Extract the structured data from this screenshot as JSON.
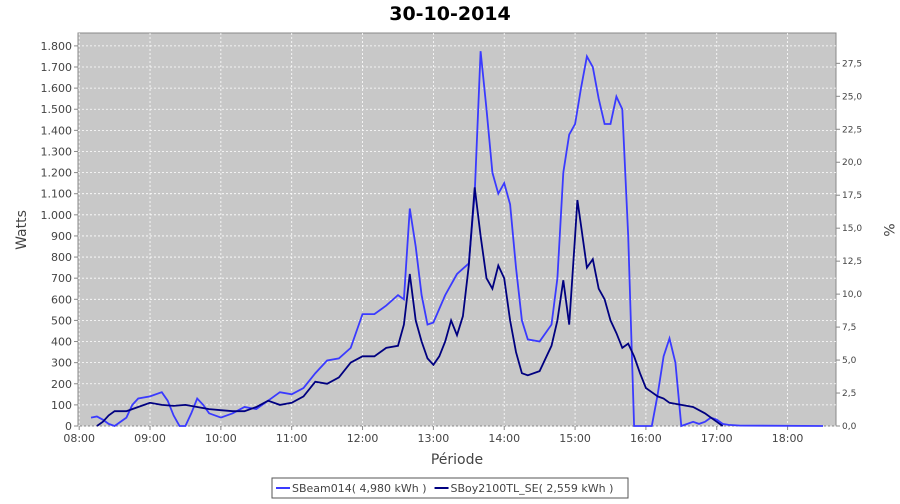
{
  "chart_data": {
    "type": "line",
    "title": "30-10-2014",
    "x_label": "Période",
    "y_label": "Watts",
    "y2_label": "%",
    "xlim": [
      "07:59",
      "18:41"
    ],
    "xticks": [
      "08:00",
      "09:00",
      "10:00",
      "11:00",
      "12:00",
      "13:00",
      "14:00",
      "15:00",
      "16:00",
      "17:00",
      "18:00"
    ],
    "ylim": [
      0,
      1861
    ],
    "yticks": [
      0,
      100,
      200,
      300,
      400,
      500,
      600,
      700,
      800,
      900,
      {
        "value": 1000,
        "label": "1.000"
      },
      {
        "value": 1100,
        "label": "1.100"
      },
      {
        "value": 1200,
        "label": "1.200"
      },
      {
        "value": 1300,
        "label": "1.300"
      },
      {
        "value": 1400,
        "label": "1.400"
      },
      {
        "value": 1500,
        "label": "1.500"
      },
      {
        "value": 1600,
        "label": "1.600"
      },
      {
        "value": 1700,
        "label": "1.700"
      },
      {
        "value": 1800,
        "label": "1.800"
      }
    ],
    "y2lim": [
      0,
      29.8
    ],
    "y2ticks": [
      {
        "value": 0,
        "label": "0,0"
      },
      {
        "value": 2.5,
        "label": "2,5"
      },
      {
        "value": 5,
        "label": "5,0"
      },
      {
        "value": 7.5,
        "label": "7,5"
      },
      {
        "value": 10,
        "label": "10,0"
      },
      {
        "value": 12.5,
        "label": "12,5"
      },
      {
        "value": 15,
        "label": "15,0"
      },
      {
        "value": 17.5,
        "label": "17,5"
      },
      {
        "value": 20,
        "label": "20,0"
      },
      {
        "value": 22.5,
        "label": "22,5"
      },
      {
        "value": 25,
        "label": "25,0"
      },
      {
        "value": 27.5,
        "label": "27,5"
      }
    ],
    "grid": true,
    "legend": "bottom",
    "series": [
      {
        "name": "SBeam014( 4,980 kWh )",
        "color": "#3a3aff",
        "x": [
          "08:10",
          "08:15",
          "08:20",
          "08:25",
          "08:30",
          "08:40",
          "08:45",
          "08:50",
          "09:00",
          "09:10",
          "09:15",
          "09:20",
          "09:25",
          "09:30",
          "09:35",
          "09:40",
          "09:45",
          "09:50",
          "10:00",
          "10:10",
          "10:20",
          "10:30",
          "10:40",
          "10:50",
          "11:00",
          "11:10",
          "11:20",
          "11:30",
          "11:40",
          "11:50",
          "12:00",
          "12:10",
          "12:20",
          "12:30",
          "12:35",
          "12:40",
          "12:45",
          "12:50",
          "12:55",
          "13:00",
          "13:10",
          "13:20",
          "13:30",
          "13:35",
          "13:40",
          "13:45",
          "13:50",
          "13:55",
          "14:00",
          "14:05",
          "14:10",
          "14:15",
          "14:20",
          "14:30",
          "14:40",
          "14:45",
          "14:50",
          "14:55",
          "15:00",
          "15:05",
          "15:10",
          "15:15",
          "15:20",
          "15:25",
          "15:30",
          "15:35",
          "15:40",
          "15:45",
          "15:50",
          "16:00",
          "16:05",
          "16:10",
          "16:15",
          "16:20",
          "16:25",
          "16:30",
          "16:40",
          "16:45",
          "16:50",
          "16:55",
          "17:00",
          "17:05",
          "17:10",
          "17:20",
          "18:30"
        ],
        "values": [
          40,
          45,
          30,
          10,
          0,
          40,
          100,
          130,
          140,
          160,
          120,
          50,
          0,
          0,
          60,
          130,
          100,
          60,
          40,
          60,
          90,
          80,
          120,
          160,
          150,
          180,
          250,
          310,
          320,
          370,
          530,
          530,
          570,
          620,
          600,
          1030,
          850,
          620,
          480,
          490,
          620,
          720,
          770,
          1100,
          1775,
          1500,
          1200,
          1100,
          1150,
          1050,
          750,
          500,
          410,
          400,
          480,
          700,
          1200,
          1380,
          1430,
          1600,
          1750,
          1700,
          1550,
          1430,
          1430,
          1560,
          1500,
          900,
          0,
          0,
          0,
          150,
          330,
          415,
          300,
          0,
          20,
          10,
          20,
          40,
          30,
          10,
          5,
          2,
          0
        ]
      },
      {
        "name": "SBoy2100TL_SE( 2,559 kWh )",
        "color": "#000080",
        "x": [
          "08:15",
          "08:20",
          "08:25",
          "08:30",
          "08:40",
          "08:50",
          "09:00",
          "09:10",
          "09:20",
          "09:30",
          "09:40",
          "09:50",
          "10:00",
          "10:10",
          "10:20",
          "10:30",
          "10:40",
          "10:50",
          "11:00",
          "11:10",
          "11:20",
          "11:30",
          "11:40",
          "11:50",
          "12:00",
          "12:10",
          "12:20",
          "12:30",
          "12:35",
          "12:40",
          "12:45",
          "12:50",
          "12:55",
          "13:00",
          "13:05",
          "13:10",
          "13:15",
          "13:20",
          "13:25",
          "13:30",
          "13:35",
          "13:40",
          "13:45",
          "13:50",
          "13:55",
          "14:00",
          "14:05",
          "14:10",
          "14:15",
          "14:20",
          "14:30",
          "14:40",
          "14:45",
          "14:50",
          "14:55",
          "15:00",
          "15:02",
          "15:05",
          "15:10",
          "15:15",
          "15:20",
          "15:25",
          "15:30",
          "15:35",
          "15:40",
          "15:45",
          "15:50",
          "15:55",
          "16:00",
          "16:05",
          "16:10",
          "16:15",
          "16:20",
          "16:30",
          "16:40",
          "16:50",
          "17:00",
          "17:05"
        ],
        "values": [
          0,
          20,
          50,
          70,
          70,
          90,
          110,
          100,
          95,
          100,
          90,
          80,
          75,
          70,
          70,
          90,
          120,
          100,
          110,
          140,
          210,
          200,
          230,
          300,
          330,
          330,
          370,
          380,
          480,
          720,
          500,
          400,
          320,
          290,
          330,
          400,
          500,
          430,
          520,
          760,
          1130,
          900,
          700,
          650,
          760,
          700,
          500,
          350,
          250,
          240,
          260,
          380,
          500,
          690,
          480,
          900,
          1070,
          950,
          750,
          790,
          650,
          600,
          500,
          440,
          370,
          390,
          330,
          250,
          180,
          160,
          140,
          130,
          110,
          100,
          90,
          60,
          20,
          0
        ]
      }
    ]
  }
}
